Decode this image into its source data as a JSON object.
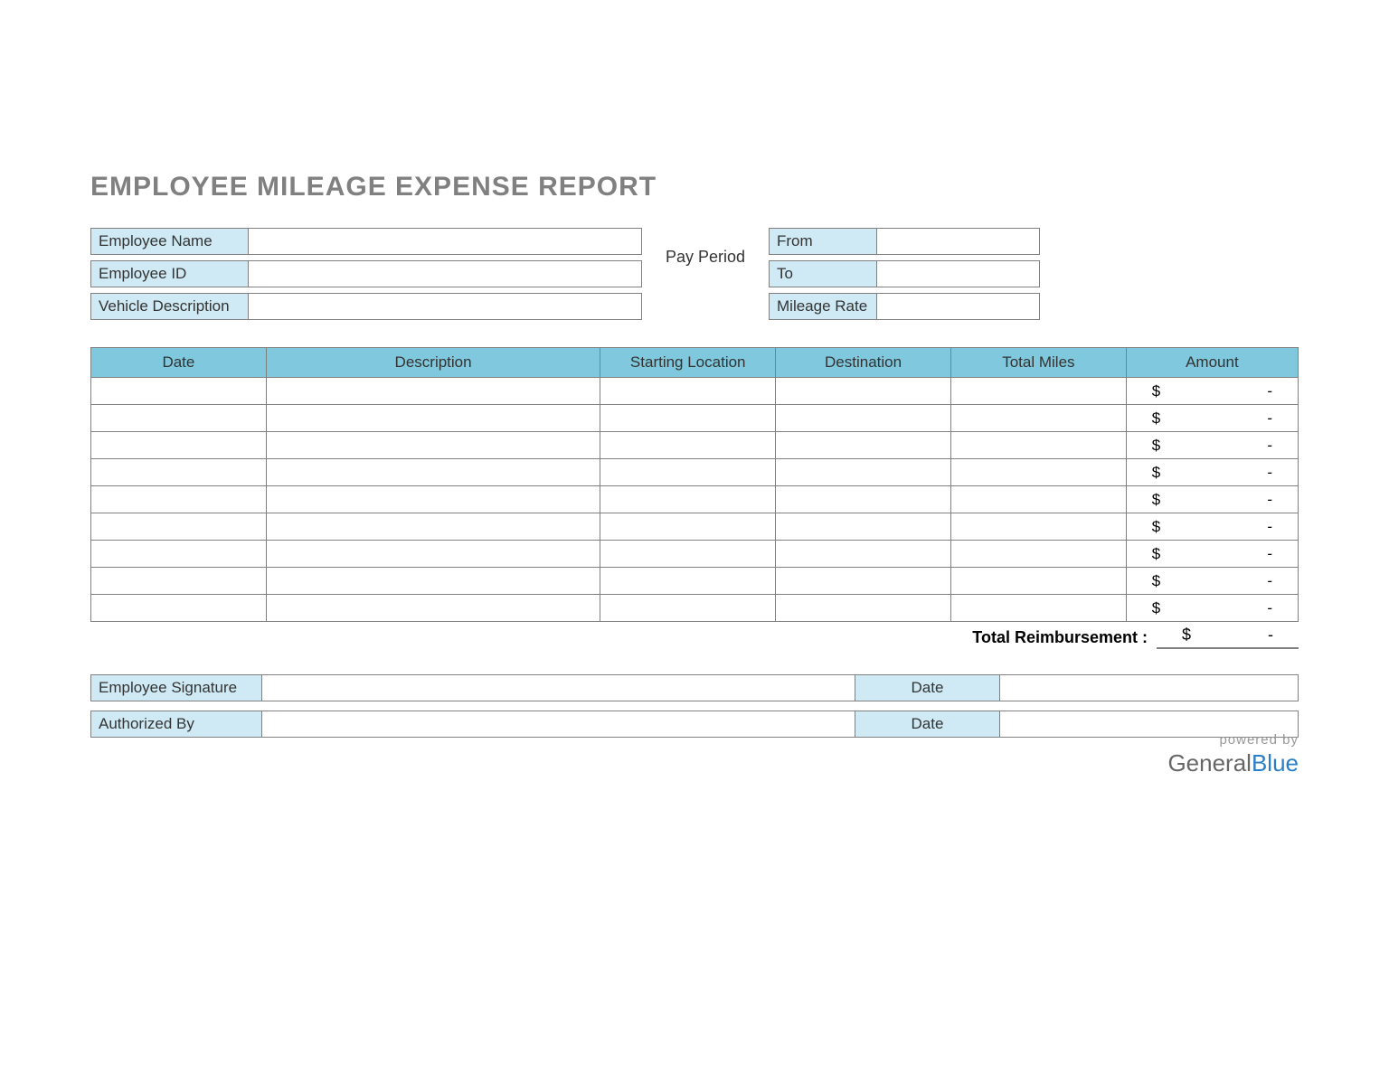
{
  "title": "EMPLOYEE MILEAGE EXPENSE REPORT",
  "colors": {
    "header_bg": "#7fc8dd",
    "label_bg": "#cfeaf4",
    "border": "#808080",
    "title_text": "#808080",
    "logo_gray": "#666666",
    "logo_blue": "#2a7fc9"
  },
  "info_fields": {
    "employee_name": {
      "label": "Employee Name",
      "value": ""
    },
    "employee_id": {
      "label": "Employee ID",
      "value": ""
    },
    "vehicle_desc": {
      "label": "Vehicle Description",
      "value": ""
    }
  },
  "pay_period_label": "Pay Period",
  "period_fields": {
    "from": {
      "label": "From",
      "value": ""
    },
    "to": {
      "label": "To",
      "value": ""
    },
    "mileage_rate": {
      "label": "Mileage Rate",
      "value": ""
    }
  },
  "table": {
    "columns": [
      "Date",
      "Description",
      "Starting Location",
      "Destination",
      "Total Miles",
      "Amount"
    ],
    "col_widths": [
      "160px",
      "305px",
      "160px",
      "160px",
      "160px",
      "157px"
    ],
    "row_count": 9,
    "amount_currency": "$",
    "amount_placeholder": "-"
  },
  "total": {
    "label": "Total Reimbursement :",
    "currency": "$",
    "value": "-"
  },
  "signatures": {
    "employee": {
      "label": "Employee Signature",
      "value": "",
      "date_label": "Date",
      "date_value": ""
    },
    "authorized": {
      "label": "Authorized By",
      "value": "",
      "date_label": "Date",
      "date_value": ""
    }
  },
  "footer": {
    "powered": "powered by",
    "logo_part1": "General",
    "logo_part2": "Blue"
  }
}
